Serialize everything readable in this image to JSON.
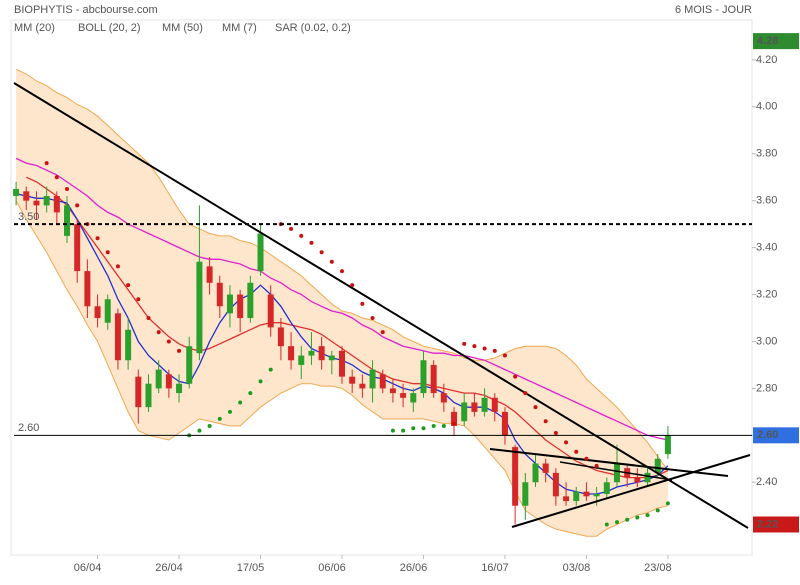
{
  "chart_data": {
    "type": "candlestick",
    "title": "BIOPHYTIS - abcbourse.com",
    "period": "6 MOIS - JOUR",
    "categories": [
      null,
      null,
      null,
      null,
      null,
      null,
      null,
      null,
      "06/04",
      null,
      null,
      null,
      null,
      null,
      null,
      null,
      "26/04",
      null,
      null,
      null,
      null,
      null,
      null,
      null,
      "17/05",
      null,
      null,
      null,
      null,
      null,
      null,
      null,
      "06/06",
      null,
      null,
      null,
      null,
      null,
      null,
      null,
      "26/06",
      null,
      null,
      null,
      null,
      null,
      null,
      null,
      "16/07",
      null,
      null,
      null,
      null,
      null,
      null,
      null,
      "03/08",
      null,
      null,
      null,
      null,
      null,
      null,
      null,
      "23/08"
    ],
    "ohlc": [
      [
        3.62,
        3.68,
        3.58,
        3.65
      ],
      [
        3.64,
        3.66,
        3.56,
        3.6
      ],
      [
        3.6,
        3.64,
        3.52,
        3.58
      ],
      [
        3.58,
        3.66,
        3.55,
        3.62
      ],
      [
        3.62,
        3.64,
        3.5,
        3.55
      ],
      [
        3.45,
        3.62,
        3.42,
        3.58
      ],
      [
        3.5,
        3.52,
        3.25,
        3.3
      ],
      [
        3.3,
        3.35,
        3.1,
        3.15
      ],
      [
        3.15,
        3.2,
        3.06,
        3.1
      ],
      [
        3.08,
        3.2,
        3.05,
        3.18
      ],
      [
        3.12,
        3.14,
        2.88,
        2.92
      ],
      [
        2.92,
        3.1,
        2.88,
        3.05
      ],
      [
        2.85,
        2.88,
        2.65,
        2.72
      ],
      [
        2.72,
        2.86,
        2.7,
        2.82
      ],
      [
        2.8,
        2.92,
        2.78,
        2.88
      ],
      [
        2.86,
        2.88,
        2.76,
        2.8
      ],
      [
        2.78,
        2.86,
        2.74,
        2.82
      ],
      [
        2.82,
        3.02,
        2.8,
        2.98
      ],
      [
        2.95,
        3.58,
        2.92,
        3.34
      ],
      [
        3.32,
        3.36,
        3.2,
        3.25
      ],
      [
        3.25,
        3.28,
        3.1,
        3.15
      ],
      [
        3.12,
        3.24,
        3.06,
        3.2
      ],
      [
        3.2,
        3.22,
        3.04,
        3.1
      ],
      [
        3.1,
        3.28,
        3.08,
        3.25
      ],
      [
        3.3,
        3.5,
        3.28,
        3.46
      ],
      [
        3.2,
        3.24,
        3.02,
        3.06
      ],
      [
        3.06,
        3.1,
        2.92,
        2.98
      ],
      [
        2.98,
        3.04,
        2.88,
        2.92
      ],
      [
        2.9,
        2.98,
        2.84,
        2.94
      ],
      [
        2.94,
        3.04,
        2.9,
        2.96
      ],
      [
        2.98,
        3.02,
        2.88,
        2.92
      ],
      [
        2.92,
        2.96,
        2.86,
        2.94
      ],
      [
        2.96,
        2.98,
        2.82,
        2.85
      ],
      [
        2.85,
        2.88,
        2.78,
        2.82
      ],
      [
        2.82,
        2.86,
        2.76,
        2.8
      ],
      [
        2.8,
        2.92,
        2.74,
        2.88
      ],
      [
        2.86,
        2.88,
        2.78,
        2.8
      ],
      [
        2.8,
        2.84,
        2.74,
        2.78
      ],
      [
        2.78,
        2.82,
        2.72,
        2.76
      ],
      [
        2.74,
        2.8,
        2.7,
        2.78
      ],
      [
        2.78,
        2.96,
        2.76,
        2.92
      ],
      [
        2.9,
        2.92,
        2.76,
        2.78
      ],
      [
        2.78,
        2.82,
        2.7,
        2.74
      ],
      [
        2.7,
        2.72,
        2.6,
        2.64
      ],
      [
        2.66,
        2.78,
        2.64,
        2.74
      ],
      [
        2.74,
        2.78,
        2.68,
        2.7
      ],
      [
        2.7,
        2.8,
        2.68,
        2.76
      ],
      [
        2.76,
        2.78,
        2.66,
        2.7
      ],
      [
        2.7,
        2.72,
        2.56,
        2.6
      ],
      [
        2.55,
        2.56,
        2.22,
        2.3
      ],
      [
        2.3,
        2.44,
        2.24,
        2.4
      ],
      [
        2.4,
        2.52,
        2.38,
        2.48
      ],
      [
        2.48,
        2.5,
        2.4,
        2.44
      ],
      [
        2.44,
        2.46,
        2.3,
        2.34
      ],
      [
        2.34,
        2.4,
        2.3,
        2.32
      ],
      [
        2.32,
        2.38,
        2.3,
        2.36
      ],
      [
        2.36,
        2.4,
        2.32,
        2.34
      ],
      [
        2.34,
        2.38,
        2.3,
        2.35
      ],
      [
        2.35,
        2.42,
        2.33,
        2.4
      ],
      [
        2.4,
        2.56,
        2.38,
        2.48
      ],
      [
        2.46,
        2.48,
        2.38,
        2.42
      ],
      [
        2.42,
        2.46,
        2.38,
        2.4
      ],
      [
        2.4,
        2.46,
        2.38,
        2.44
      ],
      [
        2.44,
        2.52,
        2.42,
        2.5
      ],
      [
        2.52,
        2.64,
        2.5,
        2.6
      ]
    ],
    "up_color": "#2ca02c",
    "down_color": "#d62728",
    "series": [
      {
        "name": "MM (20)",
        "color": "#e03030",
        "values": [
          null,
          3.7,
          3.68,
          3.65,
          3.62,
          3.58,
          3.52,
          3.46,
          3.4,
          3.34,
          3.28,
          3.22,
          3.16,
          3.1,
          3.06,
          3.02,
          2.99,
          2.97,
          2.96,
          2.97,
          2.99,
          3.01,
          3.03,
          3.05,
          3.07,
          3.08,
          3.08,
          3.07,
          3.06,
          3.05,
          3.03,
          3.0,
          2.97,
          2.94,
          2.91,
          2.88,
          2.86,
          2.84,
          2.83,
          2.82,
          2.82,
          2.81,
          2.8,
          2.79,
          2.78,
          2.78,
          2.77,
          2.75,
          2.73,
          2.7,
          2.66,
          2.62,
          2.58,
          2.55,
          2.52,
          2.49,
          2.47,
          2.45,
          2.44,
          2.43,
          2.42,
          2.42,
          2.42,
          2.43,
          2.45
        ]
      },
      {
        "name": "BOLL (20, 2)",
        "color": "#f0a850",
        "fill": "#fde6cb",
        "upper": [
          4.16,
          4.14,
          4.11,
          4.09,
          4.06,
          4.04,
          4.01,
          3.99,
          3.96,
          3.92,
          3.88,
          3.84,
          3.8,
          3.76,
          3.7,
          3.63,
          3.56,
          3.5,
          3.48,
          3.46,
          3.45,
          3.45,
          3.43,
          3.42,
          3.4,
          3.37,
          3.34,
          3.31,
          3.28,
          3.24,
          3.2,
          3.16,
          3.13,
          3.12,
          3.1,
          3.09,
          3.07,
          3.05,
          3.02,
          3.0,
          2.98,
          2.97,
          2.96,
          2.95,
          2.93,
          2.92,
          2.92,
          2.93,
          2.95,
          2.97,
          2.98,
          2.98,
          2.98,
          2.97,
          2.94,
          2.9,
          2.84,
          2.8,
          2.76,
          2.72,
          2.67,
          2.62,
          2.57,
          2.51,
          2.45
        ],
        "lower": [
          3.6,
          3.52,
          3.45,
          3.38,
          3.3,
          3.22,
          3.15,
          3.07,
          3.0,
          2.9,
          2.8,
          2.7,
          2.62,
          2.6,
          2.59,
          2.58,
          2.61,
          2.64,
          2.67,
          2.66,
          2.65,
          2.64,
          2.64,
          2.68,
          2.72,
          2.75,
          2.78,
          2.8,
          2.82,
          2.82,
          2.81,
          2.81,
          2.8,
          2.77,
          2.73,
          2.7,
          2.67,
          2.67,
          2.67,
          2.67,
          2.67,
          2.66,
          2.65,
          2.65,
          2.64,
          2.6,
          2.55,
          2.5,
          2.45,
          2.36,
          2.28,
          2.25,
          2.22,
          2.2,
          2.19,
          2.18,
          2.17,
          2.17,
          2.2,
          2.22,
          2.24,
          2.26,
          2.27,
          2.29,
          2.3
        ]
      },
      {
        "name": "MM (50)",
        "color": "#e020d0",
        "values": [
          3.78,
          3.76,
          3.75,
          3.73,
          3.71,
          3.68,
          3.65,
          3.62,
          3.58,
          3.55,
          3.53,
          3.5,
          3.48,
          3.46,
          3.44,
          3.42,
          3.4,
          3.38,
          3.36,
          3.35,
          3.35,
          3.34,
          3.33,
          3.31,
          3.3,
          3.27,
          3.25,
          3.22,
          3.2,
          3.17,
          3.15,
          3.13,
          3.12,
          3.1,
          3.07,
          3.05,
          3.02,
          3.0,
          2.98,
          2.97,
          2.96,
          2.95,
          2.95,
          2.94,
          2.94,
          2.93,
          2.92,
          2.9,
          2.88,
          2.86,
          2.84,
          2.82,
          2.8,
          2.78,
          2.76,
          2.74,
          2.72,
          2.7,
          2.68,
          2.66,
          2.64,
          2.62,
          2.6,
          2.59,
          2.58
        ]
      },
      {
        "name": "MM (7)",
        "color": "#2030d0",
        "values": [
          3.63,
          3.62,
          3.61,
          3.61,
          3.6,
          3.59,
          3.52,
          3.44,
          3.36,
          3.28,
          3.18,
          3.1,
          3.0,
          2.94,
          2.9,
          2.86,
          2.83,
          2.82,
          2.9,
          3.0,
          3.08,
          3.14,
          3.18,
          3.2,
          3.24,
          3.2,
          3.15,
          3.08,
          3.02,
          2.97,
          2.95,
          2.93,
          2.92,
          2.9,
          2.87,
          2.85,
          2.84,
          2.82,
          2.8,
          2.79,
          2.81,
          2.8,
          2.78,
          2.74,
          2.72,
          2.72,
          2.72,
          2.7,
          2.67,
          2.58,
          2.52,
          2.48,
          2.44,
          2.4,
          2.37,
          2.36,
          2.35,
          2.35,
          2.36,
          2.38,
          2.39,
          2.4,
          2.41,
          2.43,
          2.47
        ]
      },
      {
        "name": "SAR (0.02, 0.2)",
        "color": "#cc1010",
        "color_below": "#1f9a1f",
        "values": [
          null,
          null,
          null,
          3.76,
          3.7,
          3.65,
          3.58,
          3.5,
          3.44,
          3.38,
          3.32,
          3.24,
          3.18,
          3.1,
          3.04,
          3.0,
          2.96,
          2.6,
          2.62,
          2.64,
          2.67,
          2.7,
          2.74,
          2.78,
          2.83,
          2.88,
          3.5,
          3.48,
          3.45,
          3.42,
          3.38,
          3.34,
          3.3,
          3.24,
          3.16,
          3.1,
          3.04,
          2.62,
          2.62,
          2.63,
          2.63,
          2.64,
          2.64,
          2.65,
          2.99,
          2.98,
          2.97,
          2.96,
          2.94,
          2.85,
          2.78,
          2.72,
          2.66,
          2.61,
          2.57,
          2.53,
          2.5,
          2.47,
          2.22,
          2.23,
          2.24,
          2.25,
          2.26,
          2.28,
          2.31
        ]
      }
    ],
    "ylim": [
      2.09,
      4.37
    ],
    "yticks": [
      {
        "value": 2.4,
        "label": "2.40"
      },
      {
        "value": 2.6,
        "label": "2.60"
      },
      {
        "value": 2.8,
        "label": "2.80"
      },
      {
        "value": 3.0,
        "label": "3.00"
      },
      {
        "value": 3.2,
        "label": "3.20"
      },
      {
        "value": 3.4,
        "label": "3.40"
      },
      {
        "value": 3.6,
        "label": "3.60"
      },
      {
        "value": 3.8,
        "label": "3.80"
      },
      {
        "value": 4.0,
        "label": "4.00"
      },
      {
        "value": 4.2,
        "label": "4.20"
      }
    ],
    "hlines": [
      {
        "value": 3.5,
        "label": "3.50",
        "dashed": true
      },
      {
        "value": 2.6,
        "label": "2.60",
        "dashed": false
      }
    ],
    "price_markers": [
      {
        "value": 4.28,
        "label": "4.28",
        "color": "#2e8b2e"
      },
      {
        "value": 2.6,
        "label": "2.60",
        "color": "#2f6fe0"
      },
      {
        "value": 2.22,
        "label": "2.22",
        "color": "#c81818"
      }
    ]
  }
}
